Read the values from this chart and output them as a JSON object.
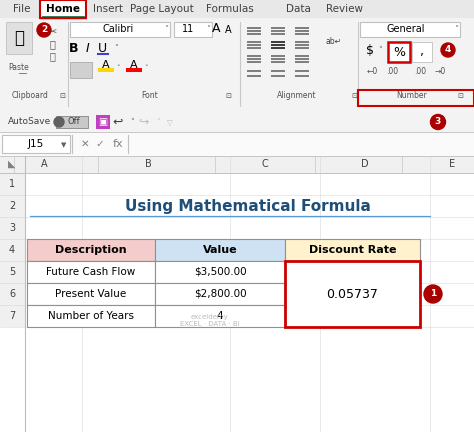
{
  "title": "Using Mathematical Formula",
  "title_color": "#1F4E79",
  "header_row": [
    "Description",
    "Value",
    "Discount Rate"
  ],
  "data_rows": [
    [
      "Future Cash Flow",
      "$3,500.00",
      ""
    ],
    [
      "Present Value",
      "$2,800.00",
      "0.05737"
    ],
    [
      "Number of Years",
      "4",
      ""
    ]
  ],
  "header_bg_colors": [
    "#F4CCCC",
    "#CFE2F3",
    "#FFF2CC"
  ],
  "highlight_red": "#CC0000",
  "circle_red": "#AA0000",
  "annotation_labels": [
    "1",
    "2",
    "3",
    "4"
  ],
  "watermark": "exceldemy\nEXCEL · DATA · BI",
  "formula_bar_text": "J15",
  "tabs": [
    "File",
    "Home",
    "Insert",
    "Page Layout",
    "Formulas",
    "Data",
    "Review"
  ],
  "col_letters": [
    "A",
    "B",
    "C",
    "D",
    "E"
  ],
  "row_numbers": [
    "1",
    "2",
    "3",
    "4",
    "5",
    "6",
    "7"
  ],
  "ribbon_bg": "#F3F3F3",
  "sheet_bg": "#FFFFFF",
  "grid_color": "#D0D0D0",
  "hdr_bg": "#F0F0F0",
  "border_color": "#C0C0C0"
}
